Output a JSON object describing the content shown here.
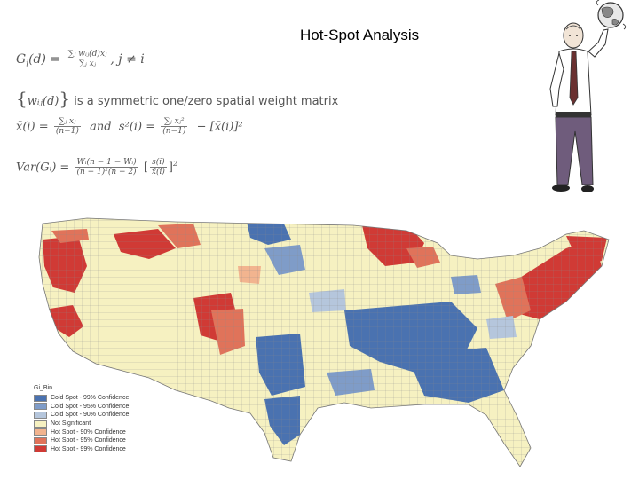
{
  "slide": {
    "title": "Hot-Spot Analysis"
  },
  "formulas": {
    "g_lhs": "G",
    "g_sub": "i",
    "g_arg": "(d) =",
    "g_num": "∑ⱼ wᵢⱼ(d)xⱼ",
    "g_den": "∑ⱼ xⱼ",
    "g_cond": ", j ≠ i",
    "w_term": "wᵢⱼ(d)",
    "w_text": "is a symmetric one/zero spatial weight matrix",
    "mean_lhs": "x̄(i) =",
    "mean_num": "∑ⱼ xⱼ",
    "mean_den": "(n−1)",
    "and": "and",
    "var_lhs": "s²(i) =",
    "var_num": "∑ⱼ xⱼ²",
    "var_den": "(n−1)",
    "var_tail": "− [x̄(i)]²",
    "vg_lhs": "Var(Gᵢ) =",
    "vg_num": "Wᵢ(n − 1 − Wᵢ)",
    "vg_den": "(n − 1)²(n − 2)",
    "vg_br_num": "s(i)",
    "vg_br_den": "x̄(i)",
    "vg_power": "2"
  },
  "legend": {
    "title": "Gi_Bin",
    "items": [
      {
        "label": "Cold Spot - 99% Confidence",
        "color": "#4a72b0"
      },
      {
        "label": "Cold Spot - 95% Confidence",
        "color": "#7f9cc8"
      },
      {
        "label": "Cold Spot - 90% Confidence",
        "color": "#b5c6dc"
      },
      {
        "label": "Not Significant",
        "color": "#f6f1c1"
      },
      {
        "label": "Hot Spot - 90% Confidence",
        "color": "#f2b48f"
      },
      {
        "label": "Hot Spot - 95% Confidence",
        "color": "#e0735a"
      },
      {
        "label": "Hot Spot - 99% Confidence",
        "color": "#d03a35"
      }
    ]
  }
}
